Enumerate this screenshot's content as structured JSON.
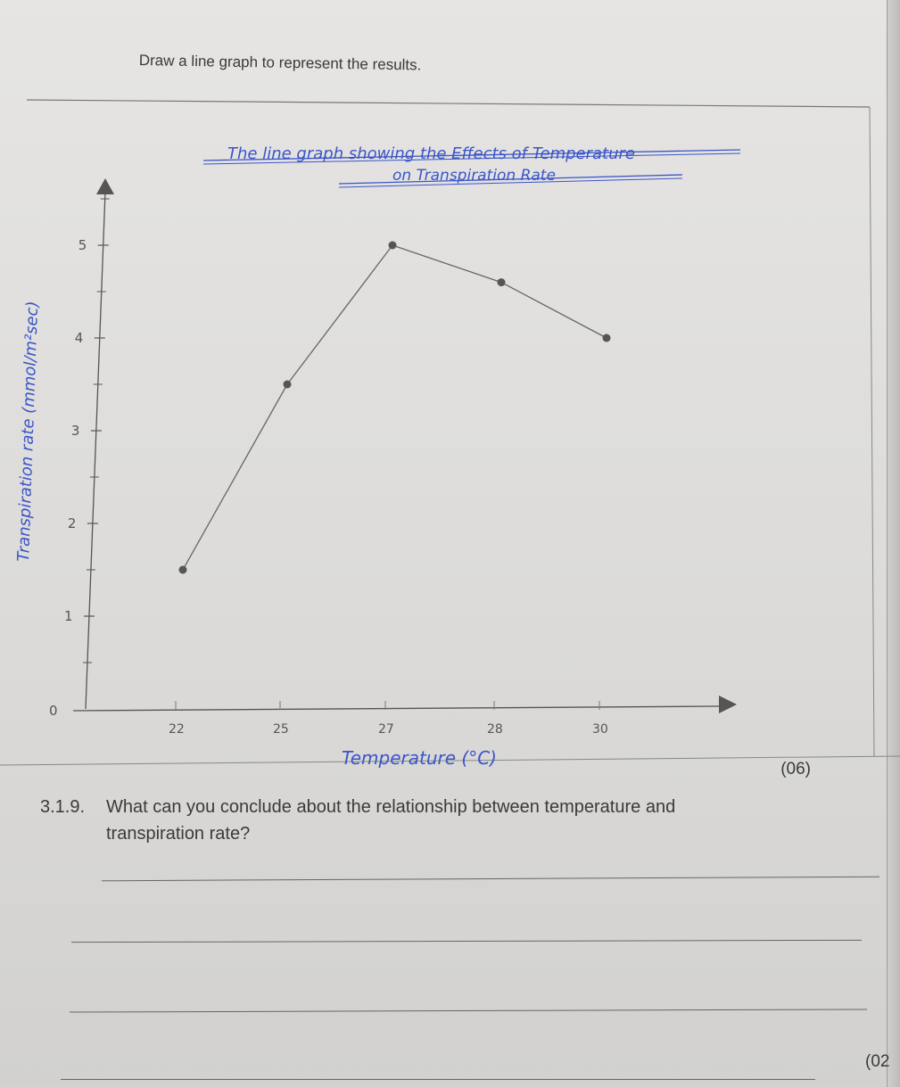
{
  "instruction": "Draw a line graph to represent the results.",
  "marks_graph": "(06)",
  "marks_question": "(02",
  "question": {
    "number": "3.1.9.",
    "line1": "What can you conclude about the relationship between temperature and",
    "line2": "transpiration rate?"
  },
  "chart_data": {
    "type": "line",
    "title_line1": "The line graph showing the Effects of Temperature",
    "title_line2": "on Transpiration Rate",
    "xlabel": "Temperature (°C)",
    "ylabel": "Transpiration rate (mmol/m²sec)",
    "x_ticks": [
      "22",
      "25",
      "27",
      "28",
      "30"
    ],
    "y_ticks": [
      "0",
      "1",
      "2",
      "3",
      "4",
      "5"
    ],
    "ylim": [
      0,
      5.5
    ],
    "series": [
      {
        "values": [
          {
            "x": "22",
            "y": 1.5
          },
          {
            "x": "25",
            "y": 3.5
          },
          {
            "x": "27",
            "y": 5.0
          },
          {
            "x": "28",
            "y": 4.6
          },
          {
            "x": "30",
            "y": 4.0
          }
        ]
      }
    ],
    "grid": false,
    "colors": {
      "ink": "#3b55c8",
      "pencil": "#555555"
    }
  }
}
